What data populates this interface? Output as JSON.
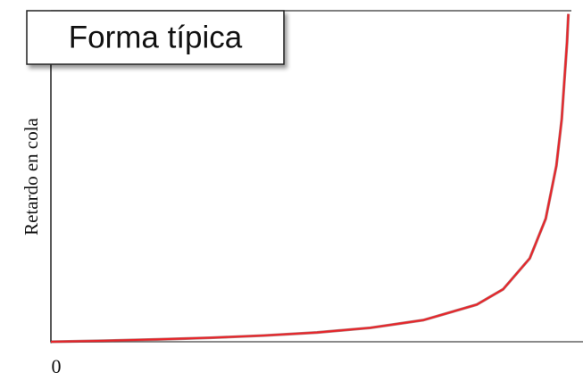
{
  "chart_data": {
    "type": "line",
    "title": "Forma típica",
    "y_label": "Retardo en cola",
    "x": [
      0,
      0.1,
      0.2,
      0.3,
      0.4,
      0.5,
      0.6,
      0.7,
      0.8,
      0.85,
      0.9,
      0.93,
      0.95,
      0.96,
      0.97,
      0.9725
    ],
    "series": [
      {
        "color": "#e8252a",
        "values": [
          0,
          0.031,
          0.07,
          0.12,
          0.187,
          0.28,
          0.42,
          0.653,
          1.12,
          1.587,
          2.52,
          3.72,
          5.32,
          6.72,
          9.05,
          9.9
        ]
      }
    ],
    "xlim": [
      0,
      1
    ],
    "ylim": [
      0,
      10
    ],
    "xticks": [
      0
    ]
  }
}
